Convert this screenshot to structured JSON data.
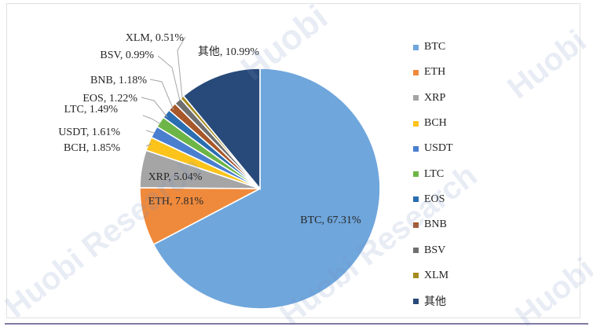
{
  "chart_data": {
    "type": "pie",
    "title": "",
    "labels": [
      "BTC",
      "ETH",
      "XRP",
      "BCH",
      "USDT",
      "LTC",
      "EOS",
      "BNB",
      "BSV",
      "XLM",
      "其他"
    ],
    "values": [
      67.31,
      7.81,
      5.04,
      1.85,
      1.61,
      1.49,
      1.22,
      1.18,
      0.99,
      0.51,
      10.99
    ],
    "data_labels": [
      "BTC, 67.31%",
      "ETH, 7.81%",
      "XRP, 5.04%",
      "BCH, 1.85%",
      "USDT, 1.61%",
      "LTC, 1.49%",
      "EOS, 1.22%",
      "BNB, 1.18%",
      "BSV, 0.99%",
      "XLM, 0.51%",
      "其他, 10.99%"
    ],
    "colors": [
      "#6fa6dc",
      "#ef8a3c",
      "#a5a5a5",
      "#fcc31b",
      "#4a7fd0",
      "#6db547",
      "#2a6db1",
      "#a8572a",
      "#6f6f6f",
      "#a58a1e",
      "#284a7a"
    ],
    "start_angle_deg": 0,
    "direction": "clockwise",
    "legend_position": "right"
  },
  "watermark": {
    "text": "Huobi Research",
    "text_top": "Huobi"
  }
}
